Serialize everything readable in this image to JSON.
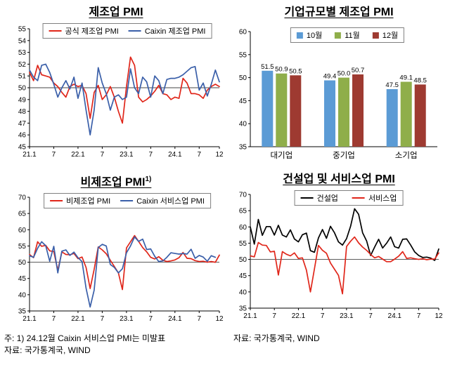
{
  "notes": {
    "note1": "주: 1) 24.12월 Caixin 서비스업 PMI는 미발표",
    "source_left": "자료: 국가통계국, WIND",
    "source_right": "자료: 국가통계국, WIND"
  },
  "colors": {
    "official_red": "#e0261a",
    "caixin_blue": "#3a5fa9",
    "construction_black": "#000000",
    "bar_oct_blue": "#5b9bd5",
    "bar_nov_green": "#8fae4a",
    "bar_dec_darkred": "#9e3a31"
  },
  "chart_data": [
    {
      "type": "line",
      "title": "제조업 PMI",
      "ylim": [
        45,
        55
      ],
      "yticks": [
        45,
        46,
        47,
        48,
        49,
        50,
        51,
        52,
        53,
        54,
        55
      ],
      "ref_line": 50,
      "xticks": {
        "pos": [
          0,
          6,
          12,
          18,
          24,
          30,
          36,
          42,
          47
        ],
        "labels": [
          "21.1",
          "7",
          "22.1",
          "7",
          "23.1",
          "7",
          "24.1",
          "7",
          "12"
        ]
      },
      "x_range": "2021.1 - 2024.12 monthly",
      "legend_position": "top-inside",
      "series": [
        {
          "name": "공식 제조업 PMI",
          "color": "#e0261a",
          "values": [
            51.3,
            50.6,
            51.9,
            51.1,
            51.0,
            50.9,
            50.4,
            50.1,
            49.6,
            49.2,
            50.1,
            50.3,
            50.1,
            50.2,
            49.5,
            47.4,
            49.6,
            50.2,
            49.0,
            49.4,
            50.1,
            49.2,
            48.0,
            47.0,
            50.1,
            52.6,
            51.9,
            49.2,
            48.8,
            49.0,
            49.3,
            49.7,
            50.2,
            49.5,
            49.4,
            49.0,
            49.2,
            49.1,
            50.8,
            50.4,
            49.5,
            49.5,
            49.4,
            49.1,
            49.8,
            50.1,
            50.3,
            50.1
          ]
        },
        {
          "name": "Caixin 제조업 PMI",
          "color": "#3a5fa9",
          "values": [
            51.5,
            50.9,
            50.6,
            51.9,
            52.0,
            51.3,
            50.3,
            49.2,
            50.0,
            50.6,
            49.9,
            50.9,
            49.1,
            50.4,
            48.1,
            46.0,
            48.1,
            51.7,
            50.4,
            49.5,
            48.1,
            49.2,
            49.4,
            49.0,
            49.2,
            51.6,
            50.0,
            49.5,
            50.9,
            50.5,
            49.2,
            51.0,
            50.6,
            49.5,
            50.7,
            50.8,
            50.8,
            50.9,
            51.1,
            51.4,
            51.7,
            51.8,
            49.8,
            50.4,
            49.3,
            50.3,
            51.5,
            50.5
          ]
        }
      ]
    },
    {
      "type": "bar",
      "title": "기업규모별 제조업 PMI",
      "ylim": [
        35,
        60
      ],
      "yticks": [
        35,
        40,
        45,
        50,
        55,
        60
      ],
      "categories": [
        "대기업",
        "중기업",
        "소기업"
      ],
      "legend_position": "top-inside",
      "series": [
        {
          "name": "10월",
          "color": "#5b9bd5",
          "values": [
            51.5,
            49.4,
            47.5
          ]
        },
        {
          "name": "11월",
          "color": "#8fae4a",
          "values": [
            50.9,
            50.0,
            49.1
          ]
        },
        {
          "name": "12월",
          "color": "#9e3a31",
          "values": [
            50.5,
            50.7,
            48.5
          ]
        }
      ]
    },
    {
      "type": "line",
      "title": "비제조업 PMI",
      "title_sup": "1)",
      "ylim": [
        35,
        70
      ],
      "yticks": [
        35,
        40,
        45,
        50,
        55,
        60,
        65,
        70
      ],
      "ref_line": 50,
      "xticks": {
        "pos": [
          0,
          6,
          12,
          18,
          24,
          30,
          36,
          42,
          47
        ],
        "labels": [
          "21.1",
          "7",
          "22.1",
          "7",
          "23.1",
          "7",
          "24.1",
          "7",
          "12"
        ]
      },
      "x_range": "2021.1 - 2024.12 monthly",
      "legend_position": "top-inside",
      "series": [
        {
          "name": "비제조업 PMI",
          "color": "#e0261a",
          "values": [
            52.4,
            51.4,
            56.3,
            54.9,
            55.2,
            53.5,
            53.3,
            47.5,
            53.2,
            52.4,
            52.3,
            52.7,
            51.1,
            51.6,
            48.4,
            41.9,
            47.8,
            54.7,
            53.8,
            52.6,
            50.6,
            48.7,
            46.7,
            41.6,
            54.4,
            56.3,
            58.2,
            56.4,
            54.5,
            53.2,
            51.5,
            51.0,
            51.7,
            50.6,
            50.2,
            50.4,
            50.7,
            51.4,
            53.0,
            51.2,
            51.1,
            50.5,
            50.2,
            50.3,
            50.0,
            50.2,
            50.0,
            52.2
          ]
        },
        {
          "name": "Caixin 서비스업 PMI",
          "color": "#3a5fa9",
          "values": [
            52.0,
            51.5,
            54.3,
            56.3,
            55.1,
            50.3,
            54.9,
            46.7,
            53.4,
            53.8,
            52.1,
            53.1,
            51.4,
            50.2,
            42.0,
            36.2,
            41.4,
            54.5,
            55.5,
            55.0,
            49.3,
            48.4,
            46.7,
            48.0,
            52.9,
            55.0,
            57.8,
            56.4,
            57.1,
            53.9,
            54.1,
            51.8,
            50.2,
            50.4,
            51.5,
            52.9,
            52.7,
            52.5,
            52.7,
            52.5,
            54.0,
            51.2,
            52.1,
            51.6,
            50.3,
            52.0,
            51.5
          ]
        }
      ]
    },
    {
      "type": "line",
      "title": "건설업 및 서비스업 PMI",
      "ylim": [
        35,
        70
      ],
      "yticks": [
        35,
        40,
        45,
        50,
        55,
        60,
        65,
        70
      ],
      "ref_line": 50,
      "xticks": {
        "pos": [
          0,
          6,
          12,
          18,
          24,
          30,
          36,
          42,
          47
        ],
        "labels": [
          "21.1",
          "7",
          "22.1",
          "7",
          "23.1",
          "7",
          "24.1",
          "7",
          "12"
        ]
      },
      "x_range": "2021.1 - 2024.12 monthly",
      "legend_position": "top-inside",
      "series": [
        {
          "name": "건설업",
          "color": "#000000",
          "values": [
            60.0,
            54.7,
            62.3,
            57.4,
            60.1,
            60.1,
            57.5,
            60.5,
            57.5,
            56.9,
            59.1,
            56.3,
            55.4,
            57.6,
            58.1,
            52.7,
            52.2,
            56.6,
            59.2,
            56.5,
            60.2,
            58.2,
            55.4,
            54.4,
            56.4,
            60.2,
            65.6,
            63.9,
            58.2,
            55.7,
            51.2,
            53.8,
            56.2,
            53.5,
            55.0,
            56.9,
            53.9,
            53.5,
            56.2,
            56.3,
            54.4,
            52.3,
            51.2,
            50.6,
            50.7,
            50.4,
            49.7,
            53.2
          ]
        },
        {
          "name": "서비스업",
          "color": "#e0261a",
          "values": [
            51.1,
            50.8,
            55.2,
            54.4,
            54.3,
            52.3,
            52.5,
            45.2,
            52.4,
            51.6,
            51.1,
            52.0,
            50.3,
            50.5,
            46.7,
            40.0,
            47.1,
            54.3,
            52.8,
            51.9,
            48.9,
            47.0,
            45.1,
            39.4,
            54.0,
            55.6,
            56.9,
            55.1,
            53.8,
            52.8,
            51.5,
            50.5,
            50.9,
            50.1,
            49.3,
            49.3,
            50.1,
            51.0,
            52.4,
            50.3,
            50.5,
            50.2,
            50.0,
            50.2,
            49.9,
            50.1,
            50.1,
            52.0
          ]
        }
      ]
    }
  ]
}
